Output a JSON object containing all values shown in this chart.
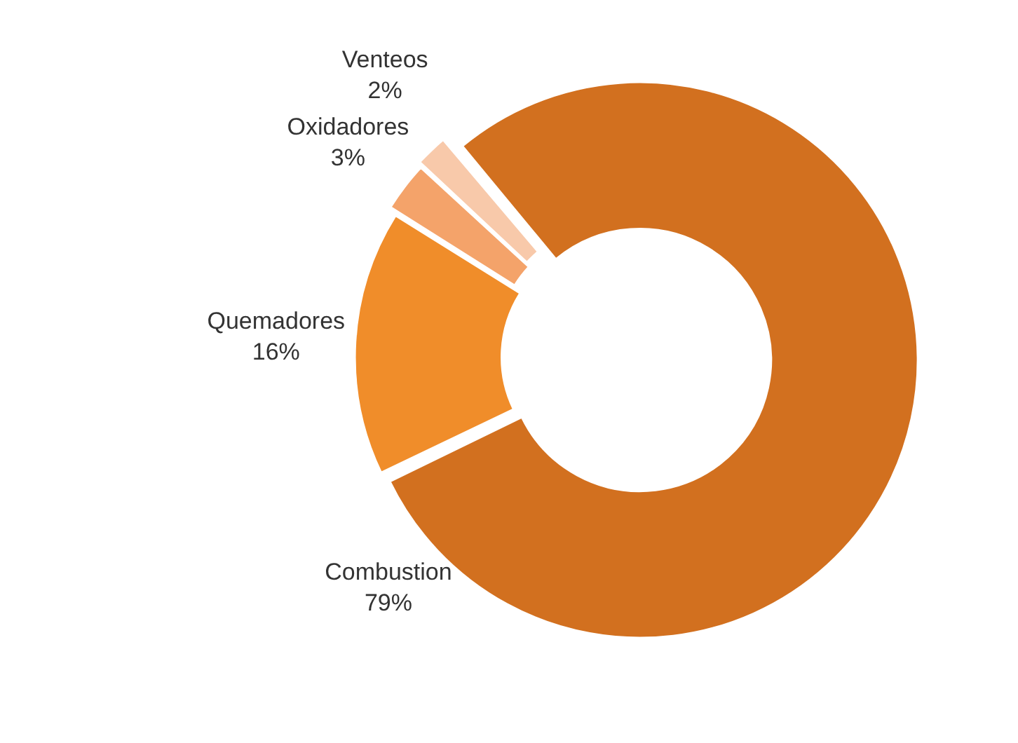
{
  "chart_data": {
    "type": "donut",
    "categories": [
      "Combustion",
      "Quemadores",
      "Oxidadores",
      "Venteos"
    ],
    "values": [
      79,
      16,
      3,
      2
    ],
    "colors": [
      "#d2701f",
      "#f08d2a",
      "#f4a36a",
      "#f8c9aa"
    ],
    "value_labels": [
      "79%",
      "16%",
      "3%",
      "2%"
    ],
    "legend": false
  }
}
